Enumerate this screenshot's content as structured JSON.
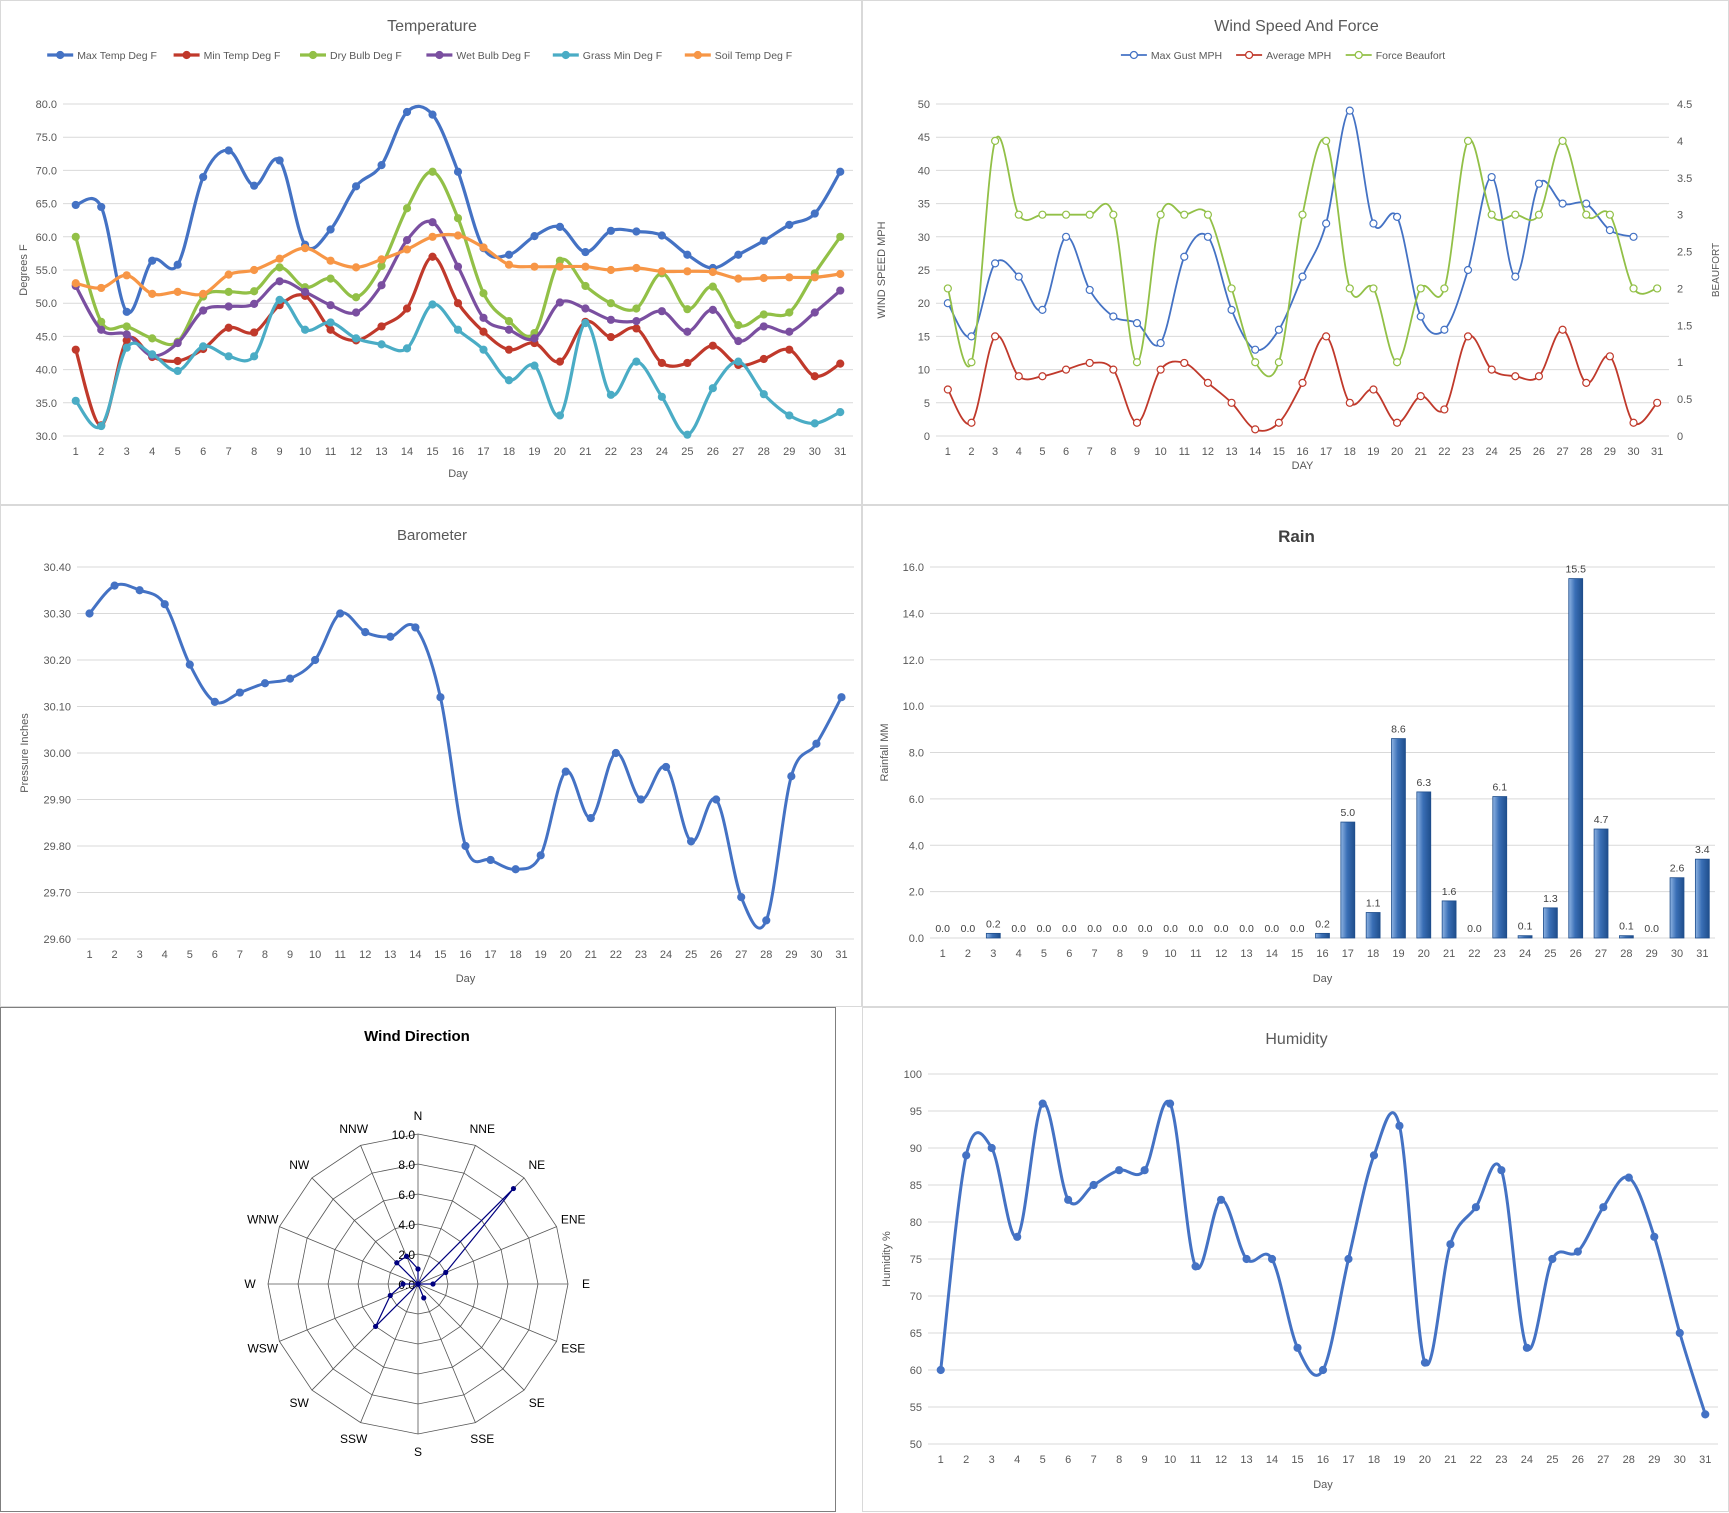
{
  "chart_data": [
    {
      "id": "temperature",
      "type": "line",
      "title": "Temperature",
      "xlabel": "Day",
      "ylabel": "Degrees F",
      "ylim": [
        30,
        80
      ],
      "ytick_step": 5,
      "ytick_decimals": 1,
      "grid": true,
      "legend": "top",
      "x": [
        1,
        2,
        3,
        4,
        5,
        6,
        7,
        8,
        9,
        10,
        11,
        12,
        13,
        14,
        15,
        16,
        17,
        18,
        19,
        20,
        21,
        22,
        23,
        24,
        25,
        26,
        27,
        28,
        29,
        30,
        31
      ],
      "series": [
        {
          "name": "Max Temp Deg F",
          "color": "#4472c4",
          "values": [
            64.8,
            64.5,
            48.7,
            56.4,
            55.8,
            69,
            73,
            67.7,
            71.5,
            58.8,
            61.1,
            67.6,
            70.8,
            78.8,
            78.4,
            69.8,
            58.3,
            57.3,
            60.1,
            61.5,
            57.7,
            60.9,
            60.8,
            60.2,
            57.3,
            55.3,
            57.3,
            59.4,
            61.8,
            63.5,
            69.8
          ]
        },
        {
          "name": "Min Temp Deg F",
          "color": "#c0392b",
          "values": [
            43,
            31.6,
            44.4,
            41.9,
            41.3,
            43.1,
            46.3,
            45.6,
            49.7,
            51.1,
            46,
            44.4,
            46.5,
            49.2,
            57,
            50,
            45.7,
            43,
            44,
            41.2,
            47.2,
            44.9,
            46.2,
            41,
            41,
            43.6,
            40.7,
            41.6,
            43,
            39,
            40.9
          ]
        },
        {
          "name": "Dry Bulb Deg F",
          "color": "#92c047",
          "values": [
            60,
            47.2,
            46.5,
            44.7,
            44.2,
            51,
            51.7,
            51.8,
            55.4,
            52.4,
            53.7,
            50.9,
            55.6,
            64.3,
            69.8,
            62.8,
            51.5,
            47.3,
            45.5,
            56.4,
            52.6,
            50,
            49.2,
            54.5,
            49.1,
            52.5,
            46.7,
            48.3,
            48.6,
            54.5,
            60
          ]
        },
        {
          "name": "Wet Bulb Deg F",
          "color": "#7a4fa0",
          "values": [
            52.6,
            46,
            45.3,
            42.1,
            44,
            48.9,
            49.5,
            49.9,
            53.3,
            51.7,
            49.7,
            48.6,
            52.7,
            59.5,
            62.2,
            55.5,
            47.8,
            46,
            44.7,
            50.1,
            49.2,
            47.5,
            47.3,
            48.8,
            45.7,
            49,
            44.3,
            46.5,
            45.7,
            48.6,
            51.9
          ]
        },
        {
          "name": "Grass Min Deg F",
          "color": "#4aacc5",
          "values": [
            35.3,
            31.5,
            43.3,
            42.3,
            39.8,
            43.5,
            42,
            42,
            50.5,
            46,
            47.1,
            44.7,
            43.8,
            43.2,
            49.8,
            46,
            43,
            38.4,
            40.6,
            33.1,
            47,
            36.2,
            41.2,
            35.9,
            30.2,
            37.2,
            41.2,
            36.3,
            33.1,
            31.9,
            33.6
          ]
        },
        {
          "name": "Soil Temp Deg F",
          "color": "#f79646",
          "values": [
            53,
            52.3,
            54.2,
            51.4,
            51.7,
            51.4,
            54.3,
            55,
            56.7,
            58.3,
            56.4,
            55.4,
            56.6,
            58.1,
            60,
            60.2,
            58.4,
            55.8,
            55.5,
            55.5,
            55.5,
            55,
            55.3,
            54.8,
            54.8,
            54.7,
            53.7,
            53.8,
            53.9,
            53.9,
            54.4
          ]
        }
      ]
    },
    {
      "id": "wind_speed",
      "type": "line",
      "title": "Wind Speed And Force",
      "xlabel": "DAY",
      "ylabel": "WIND SPEED MPH",
      "ylabel_right": "BEAUFORT",
      "ylim": [
        0,
        50
      ],
      "ylim_right": [
        0,
        4.5
      ],
      "ytick_step": 5,
      "ytick_step_right": 0.5,
      "grid": true,
      "legend": "top",
      "x": [
        1,
        2,
        3,
        4,
        5,
        6,
        7,
        8,
        9,
        10,
        11,
        12,
        13,
        14,
        15,
        16,
        17,
        18,
        19,
        20,
        21,
        22,
        23,
        24,
        25,
        26,
        27,
        28,
        29,
        30,
        31
      ],
      "series": [
        {
          "name": "Max Gust MPH",
          "color": "#4472c4",
          "axis": "left",
          "values": [
            20,
            15,
            26,
            24,
            19,
            30,
            22,
            18,
            17,
            14,
            27,
            30,
            19,
            13,
            16,
            24,
            32,
            49,
            32,
            33,
            18,
            16,
            25,
            39,
            24,
            38,
            35,
            35,
            31,
            30,
            null
          ]
        },
        {
          "name": "Average MPH",
          "color": "#c0392b",
          "axis": "left",
          "values": [
            7,
            2,
            15,
            9,
            9,
            10,
            11,
            10,
            2,
            10,
            11,
            8,
            5,
            1,
            2,
            8,
            15,
            5,
            7,
            2,
            6,
            4,
            15,
            10,
            9,
            9,
            16,
            8,
            12,
            2,
            5
          ]
        },
        {
          "name": "Force Beaufort",
          "color": "#92c047",
          "axis": "right",
          "values": [
            2,
            1,
            4,
            3,
            3,
            3,
            3,
            3,
            1,
            3,
            3,
            3,
            2,
            1,
            1,
            3,
            4,
            2,
            2,
            1,
            2,
            2,
            4,
            3,
            3,
            3,
            4,
            3,
            3,
            2,
            2
          ]
        }
      ]
    },
    {
      "id": "barometer",
      "type": "line",
      "title": "Barometer",
      "xlabel": "Day",
      "ylabel": "Pressure Inches",
      "ylim": [
        29.6,
        30.4
      ],
      "ytick_step": 0.1,
      "ytick_decimals": 2,
      "grid": true,
      "x": [
        1,
        2,
        3,
        4,
        5,
        6,
        7,
        8,
        9,
        10,
        11,
        12,
        13,
        14,
        15,
        16,
        17,
        18,
        19,
        20,
        21,
        22,
        23,
        24,
        25,
        26,
        27,
        28,
        29,
        30,
        31
      ],
      "series": [
        {
          "name": "",
          "color": "#4472c4",
          "values": [
            30.3,
            30.36,
            30.35,
            30.32,
            30.19,
            30.11,
            30.13,
            30.15,
            30.16,
            30.2,
            30.3,
            30.26,
            30.25,
            30.27,
            30.12,
            29.8,
            29.77,
            29.75,
            29.78,
            29.96,
            29.86,
            30,
            29.9,
            29.97,
            29.81,
            29.9,
            29.69,
            29.64,
            29.95,
            30.02,
            30.12
          ]
        }
      ]
    },
    {
      "id": "rain",
      "type": "bar",
      "title": "Rain",
      "xlabel": "Day",
      "ylabel": "Rainfall MM",
      "ylim": [
        0,
        16
      ],
      "ytick_step": 2,
      "ytick_decimals": 1,
      "grid": true,
      "categories": [
        "1",
        "2",
        "3",
        "4",
        "5",
        "6",
        "7",
        "8",
        "9",
        "10",
        "11",
        "12",
        "13",
        "14",
        "15",
        "16",
        "17",
        "18",
        "19",
        "20",
        "21",
        "22",
        "23",
        "24",
        "25",
        "26",
        "27",
        "28",
        "29",
        "30",
        "31"
      ],
      "values": [
        0,
        0,
        0.2,
        0,
        0,
        0,
        0,
        0,
        0,
        0,
        0,
        0,
        0,
        0,
        0,
        0.2,
        5,
        1.1,
        8.6,
        6.3,
        1.6,
        0,
        6.1,
        0.1,
        1.3,
        15.5,
        4.7,
        0.1,
        0,
        2.6,
        3.4
      ],
      "data_labels": [
        "0.0",
        "0.0",
        "0.2",
        "0.0",
        "0.0",
        "0.0",
        "0.0",
        "0.0",
        "0.0",
        "0.0",
        "0.0",
        "0.0",
        "0.0",
        "0.0",
        "0.0",
        "0.2",
        "5.0",
        "1.1",
        "8.6",
        "6.3",
        "1.6",
        "0.0",
        "6.1",
        "0.1",
        "1.3",
        "15.5",
        "4.7",
        "0.1",
        "0.0",
        "2.6",
        "3.4"
      ],
      "color": "#3a6fb6"
    },
    {
      "id": "wind_direction",
      "type": "radar",
      "title": "Wind Direction",
      "rlim": [
        0,
        10
      ],
      "rtick_step": 2,
      "categories": [
        "N",
        "NNE",
        "NE",
        "ENE",
        "E",
        "ESE",
        "SE",
        "SSE",
        "S",
        "SSW",
        "SW",
        "WSW",
        "W",
        "WNW",
        "NW",
        "NNW"
      ],
      "values": [
        1,
        0,
        9,
        2,
        1,
        0,
        0,
        1,
        0,
        0,
        4,
        2,
        1,
        0,
        2,
        2
      ],
      "color": "#00007f"
    },
    {
      "id": "humidity",
      "type": "line",
      "title": "Humidity",
      "xlabel": "Day",
      "ylabel": "Humidity %",
      "ylim": [
        50,
        100
      ],
      "ytick_step": 5,
      "ytick_decimals": 0,
      "grid": true,
      "x": [
        1,
        2,
        3,
        4,
        5,
        6,
        7,
        8,
        9,
        10,
        11,
        12,
        13,
        14,
        15,
        16,
        17,
        18,
        19,
        20,
        21,
        22,
        23,
        24,
        25,
        26,
        27,
        28,
        29,
        30,
        31
      ],
      "series": [
        {
          "name": "",
          "color": "#4472c4",
          "values": [
            60,
            89,
            90,
            78,
            96,
            83,
            85,
            87,
            87,
            96,
            74,
            83,
            75,
            75,
            63,
            60,
            75,
            89,
            93,
            61,
            77,
            82,
            87,
            63,
            75,
            76,
            82,
            86,
            78,
            65,
            54
          ]
        }
      ]
    }
  ]
}
